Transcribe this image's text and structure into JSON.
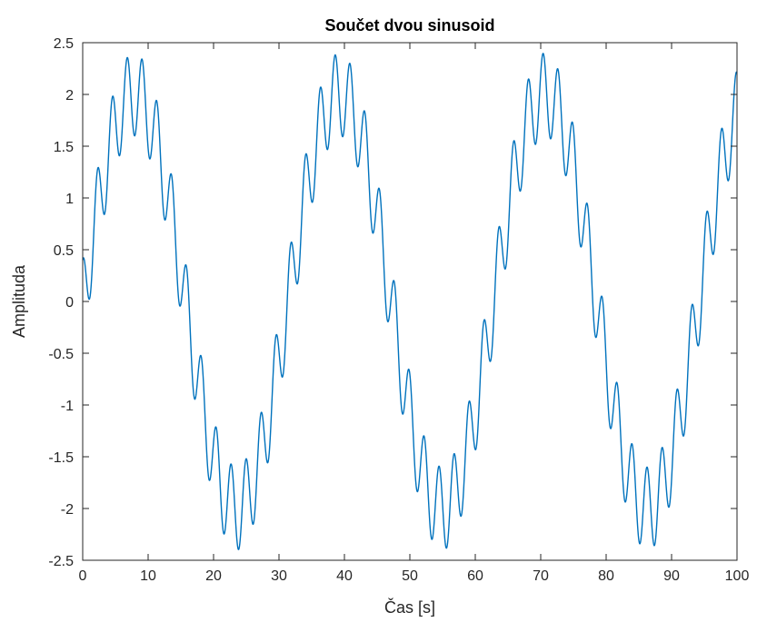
{
  "chart_data": {
    "type": "line",
    "title": "Součet dvou sinusoid",
    "xlabel": "Čas [s]",
    "ylabel": "Amplituda",
    "xlim": [
      0,
      100
    ],
    "ylim": [
      -2.5,
      2.5
    ],
    "xticks": [
      0,
      10,
      20,
      30,
      40,
      50,
      60,
      70,
      80,
      90,
      100
    ],
    "xtick_labels": [
      "0",
      "10",
      "20",
      "30",
      "40",
      "50",
      "60",
      "70",
      "80",
      "90",
      "100"
    ],
    "yticks": [
      -2.5,
      -2,
      -1.5,
      -1,
      -0.5,
      0,
      0.5,
      1,
      1.5,
      2,
      2.5
    ],
    "ytick_labels": [
      "-2.5",
      "-2",
      "-1.5",
      "-1",
      "-0.5",
      "0",
      "0.5",
      "1",
      "1.5",
      "2",
      "2.5"
    ],
    "grid": false,
    "series": [
      {
        "color": "#0072bd",
        "function": "2*sin(2*pi*t/31.4) + 0.4*sin(2*pi*t/2.27 + 1.6)",
        "t_start": 0,
        "t_end": 100,
        "samples": 2001
      }
    ]
  }
}
